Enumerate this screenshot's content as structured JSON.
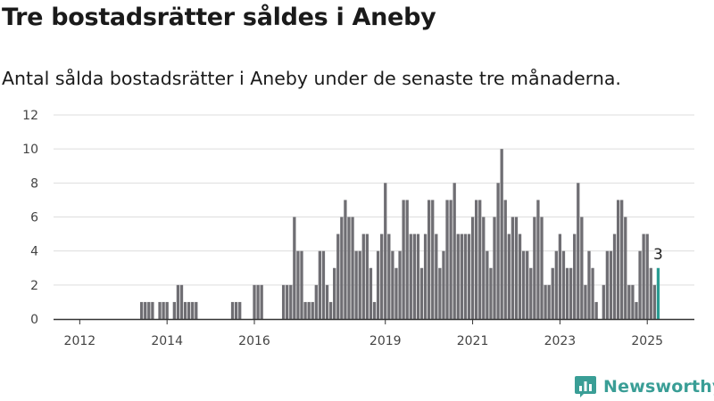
{
  "header": {
    "title": "Tre bostadsrätter såldes i Aneby",
    "subtitle": "Antal sålda bostadsrätter i Aneby under de senaste tre månaderna."
  },
  "brand": {
    "name": "Newsworthy",
    "logo_icon": "newsworthy-bar-chart-icon",
    "color": "#3a9e96"
  },
  "chart_data": {
    "type": "bar",
    "title": "Tre bostadsrätter såldes i Aneby",
    "subtitle": "Antal sålda bostadsrätter i Aneby under de senaste tre månaderna.",
    "xlabel": "",
    "ylabel": "",
    "ylim": [
      0,
      12
    ],
    "yticks": [
      0,
      2,
      4,
      6,
      8,
      10,
      12
    ],
    "xticks": [
      {
        "label": "2012",
        "month_index": 4
      },
      {
        "label": "2014",
        "month_index": 28
      },
      {
        "label": "2016",
        "month_index": 52
      },
      {
        "label": "2019",
        "month_index": 88
      },
      {
        "label": "2021",
        "month_index": 112
      },
      {
        "label": "2023",
        "month_index": 136
      },
      {
        "label": "2025",
        "month_index": 160
      }
    ],
    "grid": true,
    "legend": "none",
    "period": "rolling three-month totals, monthly",
    "first_month": "2011-08",
    "values": [
      0,
      0,
      0,
      0,
      0,
      0,
      0,
      0,
      0,
      0,
      0,
      0,
      0,
      0,
      0,
      0,
      0,
      0,
      0,
      0,
      0,
      1,
      1,
      1,
      1,
      0,
      1,
      1,
      1,
      0,
      1,
      2,
      2,
      1,
      1,
      1,
      1,
      0,
      0,
      0,
      0,
      0,
      0,
      0,
      0,
      0,
      1,
      1,
      1,
      0,
      0,
      0,
      2,
      2,
      2,
      0,
      0,
      0,
      0,
      0,
      2,
      2,
      2,
      6,
      4,
      4,
      1,
      1,
      1,
      2,
      4,
      4,
      2,
      1,
      3,
      5,
      6,
      7,
      6,
      6,
      4,
      4,
      5,
      5,
      3,
      1,
      4,
      5,
      8,
      5,
      4,
      3,
      4,
      7,
      7,
      5,
      5,
      5,
      3,
      5,
      7,
      7,
      5,
      3,
      4,
      7,
      7,
      8,
      5,
      5,
      5,
      5,
      6,
      7,
      7,
      6,
      4,
      3,
      6,
      8,
      10,
      7,
      5,
      6,
      6,
      5,
      4,
      4,
      3,
      6,
      7,
      6,
      2,
      2,
      3,
      4,
      5,
      4,
      3,
      3,
      5,
      8,
      6,
      2,
      4,
      3,
      1,
      0,
      2,
      4,
      4,
      5,
      7,
      7,
      6,
      2,
      2,
      1,
      4,
      5,
      5,
      3,
      2,
      3
    ],
    "highlight": {
      "index": 163,
      "value": 3,
      "label": "3"
    },
    "bar_color": "#6f6e73",
    "highlight_color": "#2a9d93",
    "grid_color": "#dddddd",
    "axis_color": "#333333"
  }
}
